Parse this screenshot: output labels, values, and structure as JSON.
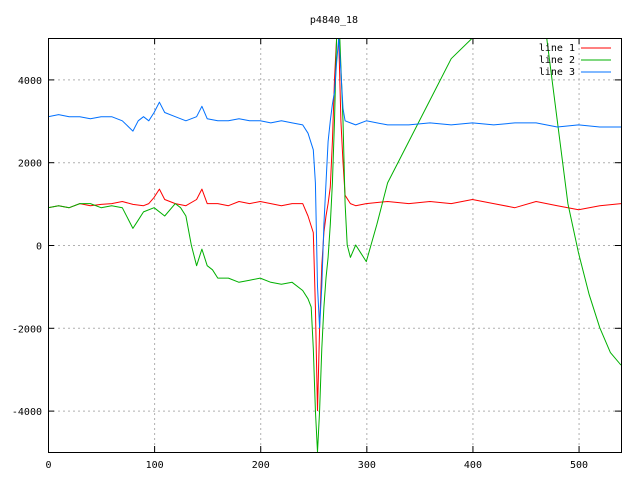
{
  "chart_data": {
    "type": "line",
    "title": "p4840_18",
    "xlabel": "",
    "ylabel": "",
    "xlim": [
      0,
      540
    ],
    "ylim": [
      -5000,
      5000
    ],
    "x_ticks": [
      0,
      100,
      200,
      300,
      400,
      500
    ],
    "y_ticks": [
      -4000,
      -2000,
      0,
      2000,
      4000
    ],
    "grid": true,
    "legend_position": "top-right",
    "series": [
      {
        "name": "line 1",
        "color": "#ff0000",
        "x": [
          0,
          10,
          20,
          30,
          40,
          50,
          60,
          70,
          80,
          90,
          95,
          100,
          105,
          110,
          120,
          130,
          140,
          145,
          150,
          160,
          170,
          180,
          190,
          200,
          210,
          220,
          230,
          240,
          245,
          250,
          252,
          254,
          256,
          258,
          260,
          262,
          264,
          266,
          268,
          270,
          272,
          274,
          276,
          278,
          280,
          285,
          290,
          300,
          320,
          340,
          360,
          380,
          400,
          420,
          440,
          460,
          480,
          500,
          520,
          540
        ],
        "y": [
          900,
          950,
          900,
          1000,
          950,
          980,
          1000,
          1050,
          980,
          950,
          1000,
          1150,
          1350,
          1100,
          1000,
          950,
          1100,
          1350,
          1000,
          1000,
          950,
          1050,
          1000,
          1050,
          1000,
          950,
          1000,
          1000,
          700,
          300,
          -1500,
          -4000,
          -2000,
          -500,
          300,
          700,
          1000,
          1400,
          2500,
          4000,
          5000,
          5000,
          3000,
          2000,
          1200,
          1000,
          950,
          1000,
          1050,
          1000,
          1050,
          1000,
          1100,
          1000,
          900,
          1050,
          950,
          850,
          950,
          1000
        ]
      },
      {
        "name": "line 2",
        "color": "#00b000",
        "x": [
          0,
          10,
          20,
          30,
          40,
          50,
          60,
          70,
          80,
          85,
          90,
          100,
          110,
          120,
          125,
          130,
          135,
          140,
          145,
          150,
          155,
          160,
          170,
          180,
          190,
          200,
          210,
          220,
          230,
          240,
          245,
          248,
          250,
          252,
          254,
          256,
          258,
          260,
          262,
          264,
          266,
          268,
          270,
          272,
          275,
          278,
          280,
          282,
          285,
          290,
          295,
          300,
          310,
          320,
          340,
          360,
          380,
          400,
          420,
          440,
          460,
          470,
          480,
          490,
          500,
          510,
          520,
          530,
          540
        ],
        "y": [
          900,
          950,
          900,
          1000,
          1000,
          900,
          950,
          900,
          400,
          600,
          800,
          900,
          700,
          1000,
          900,
          700,
          0,
          -500,
          -100,
          -500,
          -600,
          -800,
          -800,
          -900,
          -850,
          -800,
          -900,
          -950,
          -900,
          -1100,
          -1300,
          -1500,
          -2500,
          -4000,
          -5000,
          -4000,
          -2500,
          -1500,
          -800,
          -300,
          500,
          1500,
          3000,
          5000,
          5000,
          3000,
          1000,
          0,
          -300,
          0,
          -200,
          -400,
          500,
          1500,
          2500,
          3500,
          4500,
          5000,
          5000,
          5000,
          5000,
          5000,
          3000,
          1000,
          -200,
          -1200,
          -2000,
          -2600,
          -2900
        ]
      },
      {
        "name": "line 3",
        "color": "#0070ff",
        "x": [
          0,
          10,
          20,
          30,
          40,
          50,
          60,
          70,
          80,
          85,
          90,
          95,
          100,
          105,
          110,
          120,
          130,
          140,
          145,
          150,
          160,
          170,
          180,
          190,
          200,
          210,
          220,
          230,
          240,
          245,
          250,
          252,
          254,
          256,
          258,
          260,
          262,
          264,
          266,
          268,
          270,
          272,
          274,
          276,
          278,
          280,
          285,
          290,
          300,
          320,
          340,
          360,
          380,
          400,
          420,
          440,
          460,
          480,
          500,
          520,
          540
        ],
        "y": [
          3100,
          3150,
          3100,
          3100,
          3050,
          3100,
          3100,
          3000,
          2750,
          3000,
          3100,
          3000,
          3200,
          3450,
          3200,
          3100,
          3000,
          3100,
          3350,
          3050,
          3000,
          3000,
          3050,
          3000,
          3000,
          2950,
          3000,
          2950,
          2900,
          2700,
          2300,
          1500,
          -1000,
          -2000,
          -1000,
          500,
          1500,
          2500,
          3000,
          3400,
          3700,
          4400,
          5000,
          4200,
          3300,
          3000,
          2950,
          2900,
          3000,
          2900,
          2900,
          2950,
          2900,
          2950,
          2900,
          2950,
          2950,
          2850,
          2900,
          2850,
          2850
        ]
      }
    ]
  }
}
